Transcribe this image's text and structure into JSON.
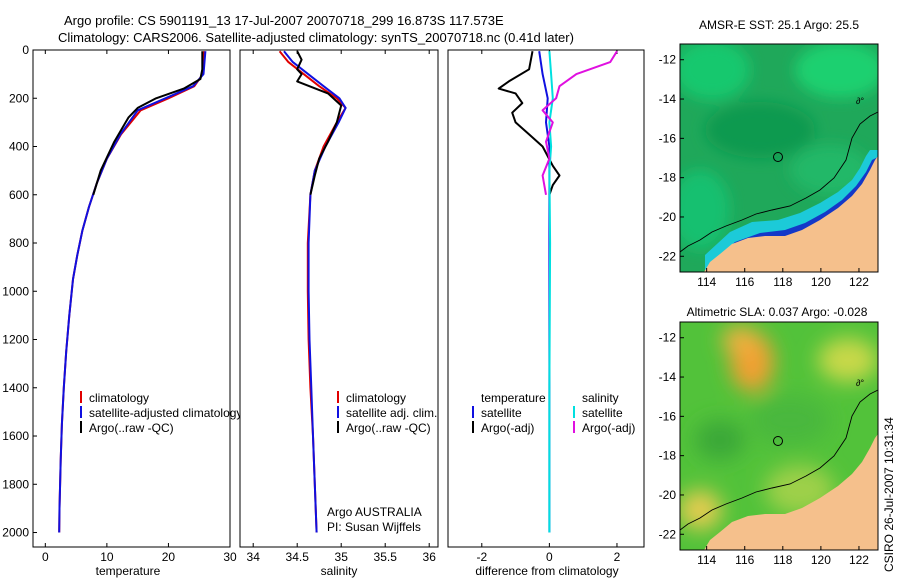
{
  "header": {
    "line1": "Argo profile: CS 5901191_13 17-Jul-2007 20070718_299 16.873S 117.573E",
    "line2": "Climatology: CARS2006. Satellite-adjusted climatology: synTS_20070718.nc (0.41d later)"
  },
  "side_stamp": "CSIRO 26-Jul-2007 10:31:34",
  "colors": {
    "climatology": "#e00000",
    "satellite": "#1010e0",
    "argo": "#000000",
    "sat_salinity": "#00e0e0",
    "argo_salinity": "#e010e0",
    "land": "#f5c08c"
  },
  "chart_data": [
    {
      "type": "line",
      "xlabel": "temperature",
      "ylabel": "",
      "xlim": [
        -2,
        30
      ],
      "ylim": [
        2060,
        0
      ],
      "xticks": [
        "0",
        "10",
        "20",
        "30"
      ],
      "xtick_values": [
        0,
        10,
        20,
        30
      ],
      "yticks": [
        "0",
        "200",
        "400",
        "600",
        "800",
        "1000",
        "1200",
        "1400",
        "1600",
        "1800",
        "2000"
      ],
      "ytick_values": [
        0,
        200,
        400,
        600,
        800,
        1000,
        1200,
        1400,
        1600,
        1800,
        2000
      ],
      "legend": [
        "climatology",
        "satellite-adjusted climatology",
        "Argo(..raw -QC)"
      ],
      "series": [
        {
          "name": "climatology",
          "color": "#e00000",
          "x": [
            25.8,
            25.6,
            24.2,
            20.0,
            15.5,
            12.3,
            10.0,
            8.4,
            7.1,
            6.0,
            5.2,
            4.5,
            3.9,
            3.4,
            3.0,
            2.7,
            2.5,
            2.4,
            2.3,
            2.25
          ],
          "y": [
            5,
            100,
            150,
            200,
            250,
            350,
            450,
            550,
            650,
            750,
            850,
            950,
            1100,
            1250,
            1400,
            1550,
            1700,
            1800,
            1900,
            2000
          ]
        },
        {
          "name": "satellite-adjusted climatology",
          "color": "#1010e0",
          "x": [
            26.0,
            25.7,
            24.0,
            19.5,
            15.0,
            12.2,
            10.0,
            8.4,
            7.1,
            6.0,
            5.2,
            4.5,
            3.9,
            3.4,
            3.0,
            2.7,
            2.5,
            2.4,
            2.3,
            2.25
          ],
          "y": [
            5,
            100,
            150,
            200,
            250,
            350,
            450,
            550,
            650,
            750,
            850,
            950,
            1100,
            1250,
            1400,
            1550,
            1700,
            1800,
            1900,
            2000
          ]
        },
        {
          "name": "Argo(..raw -QC)",
          "color": "#000000",
          "x": [
            25.5,
            25.5,
            25.2,
            22.5,
            18.0,
            15.0,
            13.5,
            11.2,
            9.0,
            7.8
          ],
          "y": [
            5,
            80,
            120,
            160,
            200,
            240,
            280,
            380,
            500,
            600
          ]
        }
      ]
    },
    {
      "type": "line",
      "xlabel": "salinity",
      "ylabel": "",
      "xlim": [
        33.85,
        36.1
      ],
      "ylim": [
        2060,
        0
      ],
      "xticks": [
        "34",
        "34.5",
        "35",
        "35.5",
        "36"
      ],
      "xtick_values": [
        34,
        34.5,
        35,
        35.5,
        36
      ],
      "legend": [
        "climatology",
        "satellite adj. clim.",
        "Argo(..raw -QC)"
      ],
      "annotation": [
        "Argo AUSTRALIA",
        "PI: Susan Wijffels"
      ],
      "series": [
        {
          "name": "climatology",
          "color": "#e00000",
          "x": [
            34.3,
            34.4,
            34.75,
            34.95,
            35.05,
            34.95,
            34.8,
            34.7,
            34.65,
            34.62,
            34.62,
            34.63,
            34.65,
            34.68,
            34.7,
            34.72
          ],
          "y": [
            5,
            50,
            150,
            200,
            240,
            300,
            400,
            500,
            600,
            800,
            1000,
            1200,
            1400,
            1600,
            1800,
            2000
          ]
        },
        {
          "name": "satellite adj. clim.",
          "color": "#1010e0",
          "x": [
            34.35,
            34.45,
            34.8,
            34.98,
            35.05,
            34.97,
            34.82,
            34.7,
            34.65,
            34.63,
            34.63,
            34.64,
            34.66,
            34.68,
            34.7,
            34.72
          ],
          "y": [
            5,
            50,
            150,
            200,
            240,
            300,
            400,
            500,
            600,
            800,
            1000,
            1200,
            1400,
            1600,
            1800,
            2000
          ]
        },
        {
          "name": "Argo(..raw -QC)",
          "color": "#000000",
          "x": [
            34.5,
            34.55,
            34.5,
            34.55,
            34.5,
            34.85,
            35.0,
            34.95,
            34.85,
            34.75,
            34.7,
            34.65
          ],
          "y": [
            5,
            40,
            80,
            100,
            130,
            180,
            230,
            300,
            380,
            450,
            520,
            600
          ]
        }
      ]
    },
    {
      "type": "line",
      "xlabel": "difference from climatology",
      "ylabel": "",
      "xlim": [
        -3,
        2.8
      ],
      "ylim": [
        2060,
        0
      ],
      "xticks": [
        "-2",
        "0",
        "2"
      ],
      "xtick_values": [
        -2,
        0,
        2
      ],
      "legend": [
        "temperature",
        "satellite",
        "Argo(-adj)",
        "salinity",
        "satellite",
        "Argo(-adj)"
      ],
      "series": [
        {
          "name": "satellite",
          "color": "#1010e0",
          "x": [
            -0.3,
            -0.2,
            -0.05,
            -0.1,
            0.0,
            0.0,
            0.0,
            0.0
          ],
          "y": [
            5,
            100,
            200,
            300,
            400,
            600,
            1000,
            2000
          ]
        },
        {
          "name": "Argo(-adj)",
          "color": "#000000",
          "x": [
            -0.5,
            -0.6,
            -1.2,
            -1.5,
            -1.0,
            -0.8,
            -1.1,
            -1.0,
            -0.6,
            -0.2,
            0.1,
            0.3,
            0.1,
            0.0
          ],
          "y": [
            5,
            80,
            130,
            160,
            180,
            220,
            260,
            300,
            350,
            400,
            480,
            520,
            560,
            600
          ]
        },
        {
          "name": "satellite",
          "color": "#00e0e0",
          "x": [
            0.0,
            0.05,
            0.1,
            0.0,
            0.05,
            0.0,
            0.02,
            0.0,
            0.0
          ],
          "y": [
            5,
            100,
            200,
            300,
            400,
            500,
            800,
            1400,
            2000
          ]
        },
        {
          "name": "Argo(-adj)",
          "color": "#e010e0",
          "x": [
            2.0,
            1.8,
            0.8,
            0.3,
            0.2,
            -0.2,
            0.1,
            -0.1,
            0.0,
            -0.2,
            -0.1
          ],
          "y": [
            5,
            50,
            100,
            150,
            200,
            250,
            300,
            380,
            450,
            520,
            600
          ]
        }
      ]
    }
  ],
  "maps": [
    {
      "title": "AMSR-E SST: 25.1  Argo: 25.5",
      "xticks": [
        "114",
        "116",
        "118",
        "120",
        "122"
      ],
      "xtick_values": [
        114,
        116,
        118,
        120,
        122
      ],
      "yticks": [
        "-12",
        "-14",
        "-16",
        "-18",
        "-20",
        "-22"
      ],
      "ytick_values": [
        -12,
        -14,
        -16,
        -18,
        -20,
        -22
      ],
      "xlim": [
        112.6,
        123.0
      ],
      "ylim": [
        -22.8,
        -11.2
      ],
      "float_position": {
        "lon": 117.573,
        "lat": -16.873
      }
    },
    {
      "title": "Altimetric SLA: 0.037  Argo: -0.028",
      "xticks": [
        "114",
        "116",
        "118",
        "120",
        "122"
      ],
      "xtick_values": [
        114,
        116,
        118,
        120,
        122
      ],
      "yticks": [
        "-12",
        "-14",
        "-16",
        "-18",
        "-20",
        "-22"
      ],
      "ytick_values": [
        -12,
        -14,
        -16,
        -18,
        -20,
        -22
      ],
      "xlim": [
        112.6,
        123.0
      ],
      "ylim": [
        -22.8,
        -11.2
      ],
      "float_position": {
        "lon": 117.573,
        "lat": -16.873
      }
    }
  ]
}
